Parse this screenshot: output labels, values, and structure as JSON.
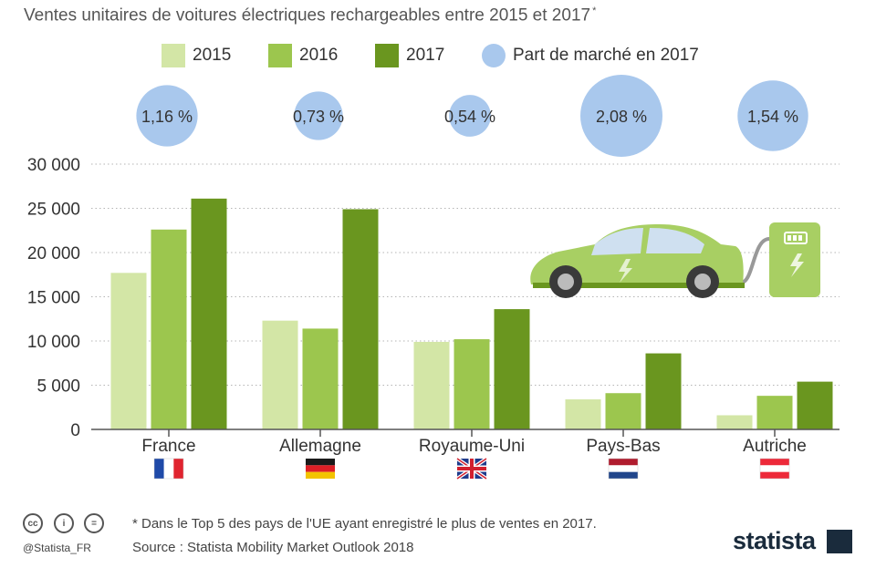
{
  "chart_data": {
    "type": "bar",
    "title": "Ventes unitaires de voitures électriques rechargeables entre 2015 et 2017",
    "title_mark": "*",
    "categories": [
      "France",
      "Allemagne",
      "Royaume-Uni",
      "Pays-Bas",
      "Autriche"
    ],
    "series": [
      {
        "name": "2015",
        "color": "#d3e6a6",
        "values": [
          17700,
          12300,
          9900,
          3400,
          1600
        ]
      },
      {
        "name": "2016",
        "color": "#9cc64e",
        "values": [
          22600,
          11400,
          10200,
          4100,
          3800
        ]
      },
      {
        "name": "2017",
        "color": "#6a961f",
        "values": [
          26100,
          24900,
          13600,
          8600,
          5400
        ]
      }
    ],
    "market_share": {
      "name": "Part de marché en 2017",
      "color": "#a9c8ed",
      "values": [
        1.16,
        0.73,
        0.54,
        2.08,
        1.54
      ],
      "labels": [
        "1,16 %",
        "0,73 %",
        "0,54 %",
        "2,08 %",
        "1,54 %"
      ]
    },
    "flags": [
      "france-flag-icon",
      "germany-flag-icon",
      "uk-flag-icon",
      "netherlands-flag-icon",
      "austria-flag-icon"
    ],
    "ylim": [
      0,
      30000
    ],
    "yticks": [
      0,
      5000,
      10000,
      15000,
      20000,
      25000,
      30000
    ],
    "ytick_labels": [
      "0",
      "5 000",
      "10 000",
      "15 000",
      "20 000",
      "25 000",
      "30 000"
    ],
    "xlabel": "",
    "ylabel": "",
    "grid": true,
    "legend_position": "top"
  },
  "footer": {
    "note": "* Dans le Top 5 des pays de l'UE ayant enregistré le plus de ventes en 2017.",
    "source": "Source : Statista Mobility Market Outlook 2018",
    "handle": "@Statista_FR",
    "brand": "statista",
    "cc_icons": [
      "cc-icon",
      "by-icon",
      "nd-icon"
    ]
  },
  "illustration": "electric-car-charging-icon"
}
